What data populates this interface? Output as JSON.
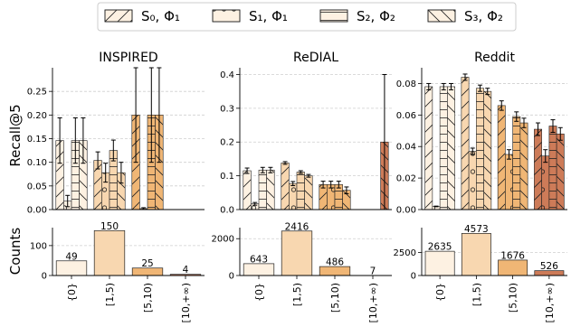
{
  "legend": [
    {
      "label": "S₀, Φ₁",
      "hatch": "diag"
    },
    {
      "label": "S₁, Φ₁",
      "hatch": "circles"
    },
    {
      "label": "S₂, Φ₂",
      "hatch": "horiz"
    },
    {
      "label": "S₃, Φ₂",
      "hatch": "back"
    }
  ],
  "ylabel_top": "Recall@5",
  "ylabel_bottom": "Counts",
  "categories": [
    "{0}",
    "[1,5)",
    "[5,10)",
    "[10,+∞)"
  ],
  "category_colors": [
    "#fdf1e2",
    "#f8d7b0",
    "#f0b675",
    "#cd7b58"
  ],
  "chart_data": [
    {
      "type": "bar",
      "title": "INSPIRED",
      "ylim": [
        0,
        0.3
      ],
      "yticks": [
        0.0,
        0.05,
        0.1,
        0.15,
        0.2,
        0.25
      ],
      "series": [
        {
          "name": "S₀, Φ₁",
          "values": [
            0.146,
            0.104,
            0.2,
            0
          ],
          "errors": [
            0.048,
            0.018,
            0.1,
            0
          ]
        },
        {
          "name": "S₁, Φ₁",
          "values": [
            0.018,
            0.078,
            0.002,
            0
          ],
          "errors": [
            0.012,
            0.02,
            0.002,
            0
          ]
        },
        {
          "name": "S₂, Φ₂",
          "values": [
            0.146,
            0.125,
            0.2,
            0
          ],
          "errors": [
            0.048,
            0.022,
            0.1,
            0
          ]
        },
        {
          "name": "S₃, Φ₂",
          "values": [
            0.146,
            0.078,
            0.2,
            0
          ],
          "errors": [
            0.048,
            0.022,
            0.1,
            0
          ]
        }
      ]
    },
    {
      "type": "bar",
      "title": "ReDIAL",
      "ylim": [
        0,
        0.42
      ],
      "yticks": [
        0.0,
        0.1,
        0.2,
        0.3,
        0.4
      ],
      "series": [
        {
          "name": "S₀, Φ₁",
          "values": [
            0.115,
            0.138,
            0.074,
            0
          ],
          "errors": [
            0.008,
            0.004,
            0.01,
            0
          ]
        },
        {
          "name": "S₁, Φ₁",
          "values": [
            0.017,
            0.077,
            0.074,
            0
          ],
          "errors": [
            0.004,
            0.006,
            0.01,
            0
          ]
        },
        {
          "name": "S₂, Φ₂",
          "values": [
            0.117,
            0.111,
            0.074,
            0
          ],
          "errors": [
            0.008,
            0.004,
            0.01,
            0
          ]
        },
        {
          "name": "S₃, Φ₂",
          "values": [
            0.117,
            0.1,
            0.057,
            0.2
          ],
          "errors": [
            0.008,
            0.004,
            0.01,
            0.2
          ]
        }
      ]
    },
    {
      "type": "bar",
      "title": "Reddit",
      "ylim": [
        0,
        0.09
      ],
      "yticks": [
        0.0,
        0.02,
        0.04,
        0.06,
        0.08
      ],
      "series": [
        {
          "name": "S₀, Φ₁",
          "values": [
            0.078,
            0.084,
            0.066,
            0.051
          ],
          "errors": [
            0.002,
            0.002,
            0.003,
            0.004
          ]
        },
        {
          "name": "S₁, Φ₁",
          "values": [
            0.002,
            0.037,
            0.035,
            0.034
          ],
          "errors": [
            0.0002,
            0.002,
            0.003,
            0.004
          ]
        },
        {
          "name": "S₂, Φ₂",
          "values": [
            0.078,
            0.077,
            0.059,
            0.053
          ],
          "errors": [
            0.002,
            0.002,
            0.003,
            0.004
          ]
        },
        {
          "name": "S₃, Φ₂",
          "values": [
            0.078,
            0.075,
            0.055,
            0.048
          ],
          "errors": [
            0.002,
            0.002,
            0.003,
            0.004
          ]
        }
      ]
    },
    {
      "type": "bar",
      "title": "",
      "ylim": [
        0,
        160
      ],
      "yticks": [
        0,
        100
      ],
      "values": [
        49,
        150,
        25,
        4
      ],
      "labels": [
        "49",
        "150",
        "25",
        "4"
      ]
    },
    {
      "type": "bar",
      "title": "",
      "ylim": [
        0,
        2600
      ],
      "yticks": [
        0,
        2000
      ],
      "values": [
        643,
        2416,
        486,
        7
      ],
      "labels": [
        "643",
        "2416",
        "486",
        "7"
      ]
    },
    {
      "type": "bar",
      "title": "",
      "ylim": [
        0,
        5200
      ],
      "yticks": [
        0,
        2500
      ],
      "values": [
        2635,
        4573,
        1676,
        526
      ],
      "labels": [
        "2635",
        "4573",
        "1676",
        "526"
      ]
    }
  ]
}
